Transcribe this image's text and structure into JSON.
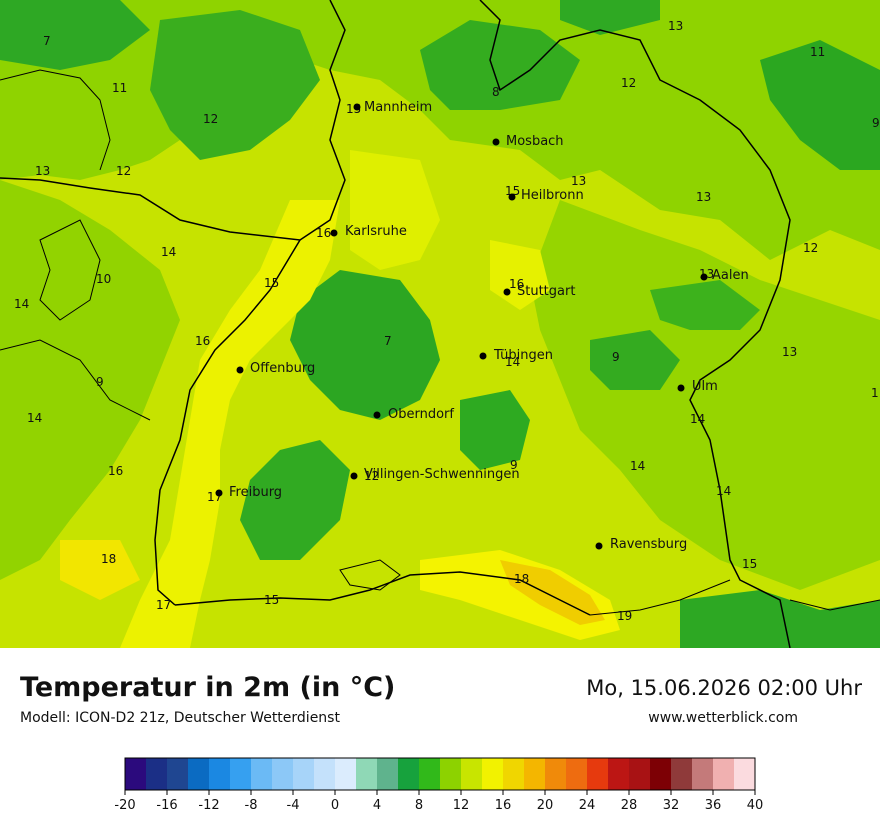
{
  "map": {
    "cities": [
      {
        "name": "Mannheim"
      },
      {
        "name": "Mosbach"
      },
      {
        "name": "Heilbronn"
      },
      {
        "name": "Karlsruhe"
      },
      {
        "name": "Stuttgart"
      },
      {
        "name": "Aalen"
      },
      {
        "name": "Offenburg"
      },
      {
        "name": "Tübingen"
      },
      {
        "name": "Oberndorf"
      },
      {
        "name": "Ulm"
      },
      {
        "name": "Villingen-Schwenningen"
      },
      {
        "name": "Freiburg"
      },
      {
        "name": "Ravensburg"
      }
    ],
    "temperatures": [
      "7",
      "11",
      "12",
      "13",
      "12",
      "13",
      "12",
      "11",
      "9",
      "8",
      "15",
      "15",
      "13",
      "13",
      "16",
      "14",
      "12",
      "10",
      "14",
      "15",
      "16",
      "13",
      "16",
      "7",
      "9",
      "9",
      "14",
      "14",
      "13",
      "14",
      "16",
      "12",
      "9",
      "14",
      "17",
      "18",
      "18",
      "14",
      "17",
      "15",
      "19",
      "15",
      "1"
    ]
  },
  "header": {
    "title": "Temperatur in 2m (in °C)",
    "model": "Modell: ICON-D2 21z, Deutscher Wetterdienst",
    "valid_time": "Mo, 15.06.2026 02:00 Uhr",
    "website": "www.wetterblick.com"
  },
  "legend": {
    "tick_labels": [
      "-20",
      "-16",
      "-12",
      "-8",
      "-4",
      "0",
      "4",
      "8",
      "12",
      "16",
      "20",
      "24",
      "28",
      "32",
      "36",
      "40"
    ],
    "colors": [
      "#2b0a7d",
      "#1b2f86",
      "#1f4691",
      "#0b6bc2",
      "#1b88e2",
      "#36a0f0",
      "#6bbaf5",
      "#8cc8f7",
      "#a7d4f9",
      "#c4e1fb",
      "#dbecfd",
      "#8fd8b6",
      "#5fb38d",
      "#17a23d",
      "#31b91a",
      "#8dd200",
      "#c8e500",
      "#f2f200",
      "#f0d600",
      "#f4b600",
      "#f08a0a",
      "#ee6c10",
      "#e63a0e",
      "#bc1614",
      "#a81214",
      "#7d0005",
      "#8f3a3a",
      "#c47a7a",
      "#f0b0b0",
      "#fbdbdf"
    ]
  },
  "colors": {
    "green_dark": "#28a922",
    "green": "#8bd100",
    "yellow_green": "#c8e400",
    "yellow": "#ecf200",
    "yellow_light": "#f4f400",
    "orange": "#f3cd00"
  }
}
